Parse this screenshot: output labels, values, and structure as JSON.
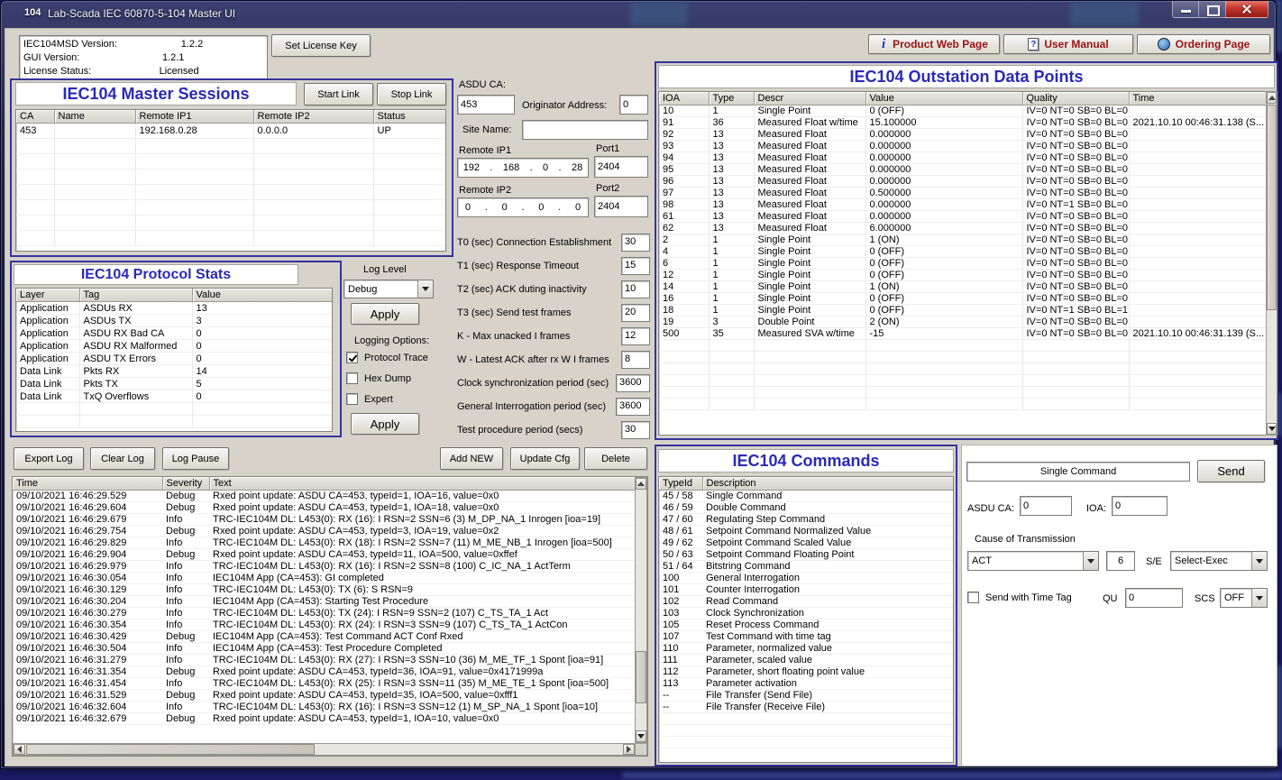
{
  "colors": {
    "desktop_bg": "#1b1b66",
    "panel_title_blue": "#2a2ab8",
    "link_red": "#9b1313",
    "client_bg": "#d7d3cb"
  },
  "titlebar": {
    "icon_text": "104",
    "title": "Lab-Scada IEC 60870-5-104 Master UI"
  },
  "header": {
    "version_box": {
      "rows": [
        {
          "label": "IEC104MSD Version:",
          "value": "1.2.2"
        },
        {
          "label": "GUI Version:",
          "value": "1.2.1"
        },
        {
          "label": "License Status:",
          "value": "Licensed"
        }
      ]
    },
    "set_license_button": "Set License Key",
    "product_web_button": "Product Web Page",
    "user_manual_button": "User Manual",
    "ordering_button": "Ordering Page"
  },
  "sessions": {
    "title": "IEC104 Master Sessions",
    "start_button": "Start Link",
    "stop_button": "Stop Link",
    "columns": [
      "CA",
      "Name",
      "Remote IP1",
      "Remote IP2",
      "Status"
    ],
    "rows": [
      [
        "453",
        "",
        "192.168.0.28",
        "0.0.0.0",
        "UP"
      ]
    ]
  },
  "stats": {
    "title": "IEC104 Protocol Stats",
    "columns": [
      "Layer",
      "Tag",
      "Value"
    ],
    "rows": [
      [
        "Application",
        "ASDUs RX",
        "13"
      ],
      [
        "Application",
        "ASDUs TX",
        "3"
      ],
      [
        "Application",
        "ASDU RX Bad CA",
        "0"
      ],
      [
        "Application",
        "ASDU RX Malformed",
        "0"
      ],
      [
        "Application",
        "ASDU TX Errors",
        "0"
      ],
      [
        "Data Link",
        "Pkts RX",
        "14"
      ],
      [
        "Data Link",
        "Pkts TX",
        "5"
      ],
      [
        "Data Link",
        "TxQ Overflows",
        "0"
      ]
    ]
  },
  "logging": {
    "level_label": "Log Level",
    "level_value": "Debug",
    "apply_label": "Apply",
    "options_label": "Logging Options:",
    "options": [
      {
        "label": "Protocol Trace",
        "checked": true
      },
      {
        "label": "Hex Dump",
        "checked": false
      },
      {
        "label": "Expert",
        "checked": false
      }
    ]
  },
  "session_form": {
    "asdu_ca_label": "ASDU CA:",
    "asdu_ca_value": "453",
    "orig_label": "Originator Address:",
    "orig_value": "0",
    "site_label": "Site Name:",
    "site_value": "",
    "ip1_label": "Remote IP1",
    "port1_label": "Port1",
    "ip1_parts": [
      "192",
      "168",
      "0",
      "28"
    ],
    "port1_value": "2404",
    "ip2_label": "Remote IP2",
    "port2_label": "Port2",
    "ip2_parts": [
      "0",
      "0",
      "0",
      "0"
    ],
    "port2_value": "2404",
    "ip_dot": ".",
    "params": [
      {
        "label": "T0 (sec) Connection Establishment",
        "value": "30"
      },
      {
        "label": "T1 (sec) Response Timeout",
        "value": "15"
      },
      {
        "label": "T2 (sec) ACK duting inactivity",
        "value": "10"
      },
      {
        "label": "T3 (sec) Send test frames",
        "value": "20"
      },
      {
        "label": "K -  Max unacked I frames",
        "value": "12"
      },
      {
        "label": "W - Latest ACK after rx W I frames",
        "value": "8"
      },
      {
        "label": "Clock synchronization period (sec)",
        "value": "3600"
      },
      {
        "label": "General Interrogation period (sec)",
        "value": "3600"
      },
      {
        "label": "Test procedure period (secs)",
        "value": "30"
      }
    ]
  },
  "datapoints": {
    "title": "IEC104 Outstation Data Points",
    "columns": [
      "IOA",
      "Type",
      "Descr",
      "Value",
      "Quality",
      "Time"
    ],
    "rows": [
      [
        "10",
        "1",
        "Single Point",
        "0 (OFF)",
        "IV=0 NT=0 SB=0 BL=0",
        ""
      ],
      [
        "91",
        "36",
        "Measured Float w/time",
        "15.100000",
        "IV=0 NT=0 SB=0 BL=0 ...",
        "2021.10.10 00:46:31.138 (S..."
      ],
      [
        "92",
        "13",
        "Measured Float",
        "0.000000",
        "IV=0 NT=0 SB=0 BL=0 ...",
        ""
      ],
      [
        "93",
        "13",
        "Measured Float",
        "0.000000",
        "IV=0 NT=0 SB=0 BL=0 ...",
        ""
      ],
      [
        "94",
        "13",
        "Measured Float",
        "0.000000",
        "IV=0 NT=0 SB=0 BL=0 ...",
        ""
      ],
      [
        "95",
        "13",
        "Measured Float",
        "0.000000",
        "IV=0 NT=0 SB=0 BL=0 ...",
        ""
      ],
      [
        "96",
        "13",
        "Measured Float",
        "0.000000",
        "IV=0 NT=0 SB=0 BL=0 ...",
        ""
      ],
      [
        "97",
        "13",
        "Measured Float",
        "0.500000",
        "IV=0 NT=0 SB=0 BL=0 ...",
        ""
      ],
      [
        "98",
        "13",
        "Measured Float",
        "0.000000",
        "IV=0 NT=1 SB=0 BL=0 ...",
        ""
      ],
      [
        "61",
        "13",
        "Measured Float",
        "0.000000",
        "IV=0 NT=0 SB=0 BL=0 ...",
        ""
      ],
      [
        "62",
        "13",
        "Measured Float",
        "6.000000",
        "IV=0 NT=0 SB=0 BL=0 ...",
        ""
      ],
      [
        "2",
        "1",
        "Single Point",
        "1 (ON)",
        "IV=0 NT=0 SB=0 BL=0",
        ""
      ],
      [
        "4",
        "1",
        "Single Point",
        "0 (OFF)",
        "IV=0 NT=0 SB=0 BL=0",
        ""
      ],
      [
        "6",
        "1",
        "Single Point",
        "0 (OFF)",
        "IV=0 NT=0 SB=0 BL=0",
        ""
      ],
      [
        "12",
        "1",
        "Single Point",
        "0 (OFF)",
        "IV=0 NT=0 SB=0 BL=0",
        ""
      ],
      [
        "14",
        "1",
        "Single Point",
        "1 (ON)",
        "IV=0 NT=0 SB=0 BL=0",
        ""
      ],
      [
        "16",
        "1",
        "Single Point",
        "0 (OFF)",
        "IV=0 NT=0 SB=0 BL=0",
        ""
      ],
      [
        "18",
        "1",
        "Single Point",
        "0 (OFF)",
        "IV=0 NT=1 SB=0 BL=1",
        ""
      ],
      [
        "19",
        "3",
        "Double Point",
        "2 (ON)",
        "IV=0 NT=0 SB=0 BL=0",
        ""
      ],
      [
        "500",
        "35",
        "Measured SVA w/time",
        "-15",
        "IV=0 NT=0 SB=0 BL=0 ...",
        "2021.10.10 00:46:31.139 (S..."
      ]
    ]
  },
  "log_buttons": {
    "export": "Export Log",
    "clear": "Clear Log",
    "pause": "Log Pause"
  },
  "dp_buttons": {
    "add": "Add NEW",
    "update": "Update Cfg",
    "delete": "Delete"
  },
  "log": {
    "columns": [
      "Time",
      "Severity",
      "Text"
    ],
    "rows": [
      [
        "09/10/2021 16:46:29.529",
        "Debug",
        "Rxed point update: ASDU CA=453, typeId=1, IOA=16, value=0x0"
      ],
      [
        "09/10/2021 16:46:29.604",
        "Debug",
        "Rxed point update: ASDU CA=453, typeId=1, IOA=18, value=0x0"
      ],
      [
        "09/10/2021 16:46:29.679",
        "Info",
        "TRC-IEC104M DL: L453(0): RX (16): I RSN=2 SSN=6 (3) M_DP_NA_1 Inrogen [ioa=19]"
      ],
      [
        "09/10/2021 16:46:29.754",
        "Debug",
        "Rxed point update: ASDU CA=453, typeId=3, IOA=19, value=0x2"
      ],
      [
        "09/10/2021 16:46:29.829",
        "Info",
        "TRC-IEC104M DL: L453(0): RX (18): I RSN=2 SSN=7 (11) M_ME_NB_1 Inrogen [ioa=500]"
      ],
      [
        "09/10/2021 16:46:29.904",
        "Debug",
        "Rxed point update: ASDU CA=453, typeId=11, IOA=500, value=0xffef"
      ],
      [
        "09/10/2021 16:46:29.979",
        "Info",
        "TRC-IEC104M DL: L453(0): RX (16): I RSN=2 SSN=8 (100) C_IC_NA_1 ActTerm"
      ],
      [
        "09/10/2021 16:46:30.054",
        "Info",
        "IEC104M App (CA=453): GI completed"
      ],
      [
        "09/10/2021 16:46:30.129",
        "Info",
        "TRC-IEC104M DL: L453(0): TX (6): S RSN=9"
      ],
      [
        "09/10/2021 16:46:30.204",
        "Info",
        "IEC104M App (CA=453): Starting Test Procedure"
      ],
      [
        "09/10/2021 16:46:30.279",
        "Info",
        "TRC-IEC104M DL: L453(0): TX (24): I RSN=9 SSN=2 (107) C_TS_TA_1 Act"
      ],
      [
        "09/10/2021 16:46:30.354",
        "Info",
        "TRC-IEC104M DL: L453(0): RX (24): I RSN=3 SSN=9 (107) C_TS_TA_1 ActCon"
      ],
      [
        "09/10/2021 16:46:30.429",
        "Debug",
        "IEC104M App (CA=453): Test Command ACT Conf Rxed"
      ],
      [
        "09/10/2021 16:46:30.504",
        "Info",
        "IEC104M App (CA=453): Test Procedure Completed"
      ],
      [
        "09/10/2021 16:46:31.279",
        "Info",
        "TRC-IEC104M DL: L453(0): RX (27): I RSN=3 SSN=10 (36) M_ME_TF_1 Spont [ioa=91]"
      ],
      [
        "09/10/2021 16:46:31.354",
        "Debug",
        "Rxed point update: ASDU CA=453, typeId=36, IOA=91, value=0x4171999a"
      ],
      [
        "09/10/2021 16:46:31.454",
        "Info",
        "TRC-IEC104M DL: L453(0): RX (25): I RSN=3 SSN=11 (35) M_ME_TE_1 Spont [ioa=500]"
      ],
      [
        "09/10/2021 16:46:31.529",
        "Debug",
        "Rxed point update: ASDU CA=453, typeId=35, IOA=500, value=0xfff1"
      ],
      [
        "09/10/2021 16:46:32.604",
        "Info",
        "TRC-IEC104M DL: L453(0): RX (16): I RSN=3 SSN=12 (1) M_SP_NA_1 Spont [ioa=10]"
      ],
      [
        "09/10/2021 16:46:32.679",
        "Debug",
        "Rxed point update: ASDU CA=453, typeId=1, IOA=10, value=0x0"
      ]
    ]
  },
  "commands": {
    "title": "IEC104 Commands",
    "columns": [
      "TypeId",
      "Description"
    ],
    "rows": [
      [
        "45 / 58",
        "Single Command"
      ],
      [
        "46 / 59",
        "Double Command"
      ],
      [
        "47 / 60",
        "Regulating Step Command"
      ],
      [
        "48 / 61",
        "Setpoint Command Normalized Value"
      ],
      [
        "49 / 62",
        "Setpoint Command Scaled Value"
      ],
      [
        "50 / 63",
        "Setpoint Command Floating Point"
      ],
      [
        "51 / 64",
        "Bitstring Command"
      ],
      [
        "100",
        "General Interrogation"
      ],
      [
        "101",
        "Counter Interrogation"
      ],
      [
        "102",
        "Read Command"
      ],
      [
        "103",
        "Clock Synchronization"
      ],
      [
        "105",
        "Reset Process Command"
      ],
      [
        "107",
        "Test Command with time tag"
      ],
      [
        "110",
        "Parameter, normalized value"
      ],
      [
        "111",
        "Parameter, scaled value"
      ],
      [
        "112",
        "Parameter, short floating point value"
      ],
      [
        "113",
        "Parameter activation"
      ],
      [
        "--",
        "File Transfer (Send File)"
      ],
      [
        "--",
        "File Transfer (Receive File)"
      ]
    ]
  },
  "command_panel": {
    "selected_command": "Single Command",
    "send_button": "Send",
    "asdu_ca_label": "ASDU CA:",
    "asdu_ca_value": "0",
    "ioa_label": "IOA:",
    "ioa_value": "0",
    "cot_label": "Cause of Transmission",
    "cot_value": "ACT",
    "cot_number": "6",
    "se_label": "S/E",
    "se_value": "Select-Exec",
    "timetag_label": "Send with Time Tag",
    "timetag_checked": false,
    "qu_label": "QU",
    "qu_value": "0",
    "scs_label": "SCS",
    "scs_value": "OFF"
  }
}
